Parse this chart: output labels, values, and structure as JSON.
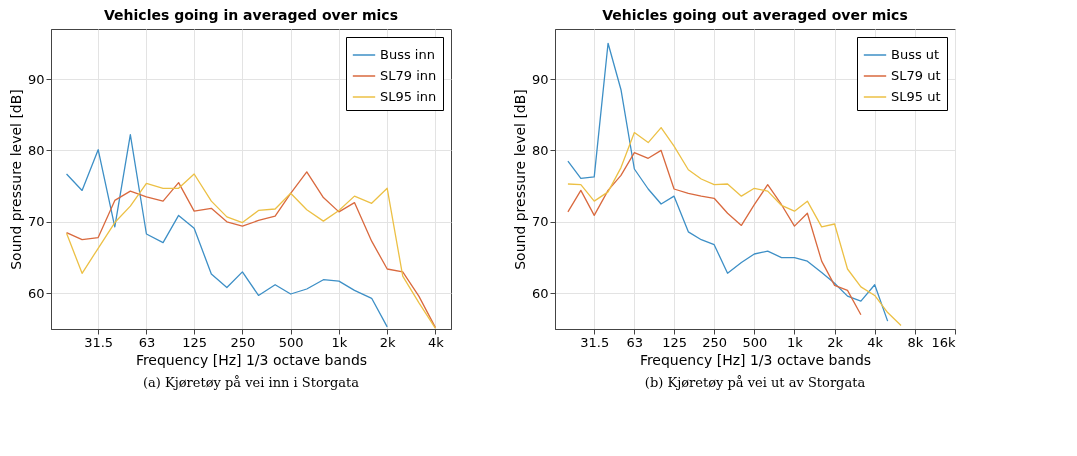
{
  "chart_data": [
    {
      "type": "line",
      "title": "Vehicles going in averaged over mics",
      "xlabel": "Frequency [Hz] 1/3 octave bands",
      "ylabel": "Sound pressure level [dB]",
      "log": "x",
      "grid": true,
      "legend": "top right",
      "xlim": [
        16,
        5000
      ],
      "xticks": [
        31.5,
        63,
        125,
        250,
        500,
        {
          "value": 1000,
          "label": "1k"
        },
        {
          "value": 2000,
          "label": "2k"
        },
        {
          "value": 4000,
          "label": "4k"
        }
      ],
      "ylim": [
        55,
        97
      ],
      "yticks": [
        60,
        70,
        80,
        90
      ],
      "annotations": [
        "(a) Kjøretøy på vei inn i Storgata"
      ],
      "x": [
        20,
        25,
        31.5,
        40,
        50,
        63,
        80,
        100,
        125,
        160,
        200,
        250,
        315,
        400,
        500,
        630,
        800,
        1000,
        1250,
        1600,
        2000,
        2500,
        3150,
        4000
      ],
      "series": [
        {
          "name": "Buss inn",
          "color": "#3d8fc6",
          "values": [
            76.7,
            74.4,
            80.1,
            69.3,
            82.2,
            68.3,
            67.1,
            70.9,
            69.1,
            62.7,
            60.8,
            63.0,
            59.7,
            61.2,
            59.9,
            60.6,
            61.9,
            61.7,
            60.4,
            59.3,
            55.3,
            null,
            null,
            null
          ]
        },
        {
          "name": "SL79 inn",
          "color": "#d9693e",
          "values": [
            68.5,
            67.5,
            67.8,
            73.0,
            74.3,
            73.5,
            72.9,
            75.5,
            71.5,
            71.9,
            70.0,
            69.4,
            70.2,
            70.8,
            74.0,
            77.0,
            73.4,
            71.4,
            72.7,
            67.3,
            63.4,
            63.0,
            59.6,
            55.2
          ]
        },
        {
          "name": "SL95 inn",
          "color": "#ecc045",
          "values": [
            68.4,
            62.8,
            66.3,
            69.9,
            72.2,
            75.4,
            74.7,
            74.7,
            76.7,
            72.9,
            70.7,
            69.9,
            71.6,
            71.8,
            74.0,
            71.7,
            70.1,
            71.6,
            73.6,
            72.6,
            74.7,
            62.4,
            58.7,
            55.1
          ]
        }
      ]
    },
    {
      "type": "line",
      "title": "Vehicles going out averaged over mics",
      "xlabel": "Frequency [Hz] 1/3 octave bands",
      "ylabel": "Sound pressure level [dB]",
      "log": "x",
      "grid": true,
      "legend": "top right",
      "xlim": [
        16,
        16000
      ],
      "xticks": [
        31.5,
        63,
        125,
        250,
        500,
        {
          "value": 1000,
          "label": "1k"
        },
        {
          "value": 2000,
          "label": "2k"
        },
        {
          "value": 4000,
          "label": "4k"
        },
        {
          "value": 8000,
          "label": "8k"
        },
        {
          "value": 16000,
          "label": "16k"
        }
      ],
      "ylim": [
        55,
        97
      ],
      "yticks": [
        60,
        70,
        80,
        90
      ],
      "annotations": [
        "(b) Kjøretøy på vei ut av Storgata"
      ],
      "x": [
        20,
        25,
        31.5,
        40,
        50,
        63,
        80,
        100,
        125,
        160,
        200,
        250,
        315,
        400,
        500,
        630,
        800,
        1000,
        1250,
        1600,
        2000,
        2500,
        3150,
        4000,
        5000,
        6300
      ],
      "series": [
        {
          "name": "Buss ut",
          "color": "#3d8fc6",
          "values": [
            78.5,
            76.1,
            76.3,
            95.0,
            88.5,
            77.4,
            74.6,
            72.5,
            73.6,
            68.6,
            67.5,
            66.8,
            62.8,
            64.3,
            65.5,
            65.9,
            65.0,
            65.0,
            64.5,
            62.9,
            61.4,
            59.6,
            58.9,
            61.2,
            56.1,
            null
          ]
        },
        {
          "name": "SL79 ut",
          "color": "#d9693e",
          "values": [
            71.4,
            74.4,
            70.9,
            74.4,
            76.5,
            79.7,
            78.9,
            80.0,
            74.6,
            74.0,
            73.6,
            73.3,
            71.2,
            69.5,
            72.4,
            75.2,
            72.4,
            69.4,
            71.2,
            64.5,
            61.1,
            60.4,
            57.0,
            null,
            null,
            null
          ]
        },
        {
          "name": "SL95 ut",
          "color": "#ecc045",
          "values": [
            75.3,
            75.2,
            72.9,
            74.2,
            77.6,
            82.5,
            81.1,
            83.2,
            80.6,
            77.3,
            76.0,
            75.2,
            75.3,
            73.6,
            74.7,
            74.3,
            72.3,
            71.5,
            72.9,
            69.3,
            69.7,
            63.4,
            60.9,
            59.7,
            57.3,
            55.5
          ]
        }
      ]
    }
  ]
}
